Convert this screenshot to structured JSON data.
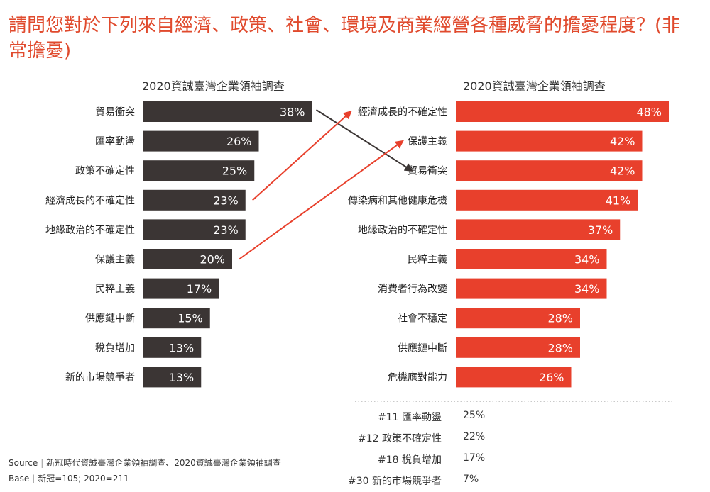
{
  "title": "請問您對於下列來自經濟、政策、社會、環境及商業經營各種威脅的擔憂程度？(非常擔憂)",
  "colors": {
    "dark": "#3b3534",
    "accent": "#e8402c",
    "title": "#e04a2d"
  },
  "chart_data": [
    {
      "type": "bar",
      "orientation": "horizontal",
      "title": "2020資誠臺灣企業領袖調查",
      "categories": [
        "貿易衝突",
        "匯率動盪",
        "政策不確定性",
        "經濟成長的不確定性",
        "地緣政治的不確定性",
        "保護主義",
        "民粹主義",
        "供應鏈中斷",
        "稅負增加",
        "新的市場競爭者"
      ],
      "values": [
        38,
        26,
        25,
        23,
        23,
        20,
        17,
        15,
        13,
        13
      ],
      "value_labels": [
        "38%",
        "26%",
        "25%",
        "23%",
        "23%",
        "20%",
        "17%",
        "15%",
        "13%",
        "13%"
      ],
      "color": "#3b3534"
    },
    {
      "type": "bar",
      "orientation": "horizontal",
      "title": "2020資誠臺灣企業領袖調查",
      "categories": [
        "經濟成長的不確定性",
        "保護主義",
        "貿易衝突",
        "傳染病和其他健康危機",
        "地緣政治的不確定性",
        "民粹主義",
        "消費者行為改變",
        "社會不穩定",
        "供應鏈中斷",
        "危機應對能力"
      ],
      "values": [
        48,
        42,
        42,
        41,
        37,
        34,
        34,
        28,
        28,
        26
      ],
      "value_labels": [
        "48%",
        "42%",
        "42%",
        "41%",
        "37%",
        "34%",
        "34%",
        "28%",
        "28%",
        "26%"
      ],
      "color": "#e8402c"
    }
  ],
  "movements": [
    {
      "from": 0,
      "to": 2,
      "color": "#3b3534"
    },
    {
      "from": 3,
      "to": 0,
      "color": "#e8402c"
    },
    {
      "from": 5,
      "to": 1,
      "color": "#e8402c"
    }
  ],
  "extras": [
    {
      "label": "#11 匯率動盪",
      "value": "25%"
    },
    {
      "label": "#12 政策不確定性",
      "value": "22%"
    },
    {
      "label": "#18 稅負增加",
      "value": "17%"
    },
    {
      "label": "#30 新的市場競爭者",
      "value": "7%"
    }
  ],
  "footnotes": {
    "source_label": "Source",
    "source_text": "新冠時代資誠臺灣企業領袖調查、2020資誠臺灣企業領袖調查",
    "base_label": "Base",
    "base_text": "新冠=105; 2020=211",
    "separator": "|"
  }
}
